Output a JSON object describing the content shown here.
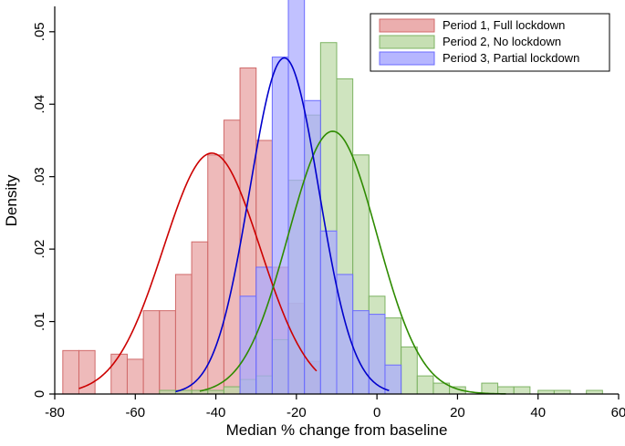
{
  "chart_data": {
    "type": "bar",
    "title": "",
    "xlabel": "Median % change from baseline",
    "ylabel": "Density",
    "xlim": [
      -80,
      60
    ],
    "ylim": [
      0,
      0.0535
    ],
    "x_ticks": [
      -80,
      -60,
      -40,
      -20,
      0,
      20,
      40,
      60
    ],
    "x_tick_labels": [
      "-80",
      "-60",
      "-40",
      "-20",
      "0",
      "20",
      "40",
      "60"
    ],
    "y_ticks": [
      0,
      0.01,
      0.02,
      0.03,
      0.04,
      0.05
    ],
    "y_tick_labels": [
      "0",
      ".01",
      ".02",
      ".03",
      ".04",
      ".05"
    ],
    "grid": false,
    "legend_position": "top-right",
    "series": [
      {
        "name": "Period 1, Full lockdown",
        "fill": "#e8a0a0",
        "stroke": "#d06a6a",
        "curve_color": "#cc0000",
        "bins": [
          [
            -78,
            -74,
            0.006
          ],
          [
            -74,
            -70,
            0.006
          ],
          [
            -66,
            -62,
            0.0055
          ],
          [
            -62,
            -58,
            0.0048
          ],
          [
            -58,
            -54,
            0.0115
          ],
          [
            -54,
            -50,
            0.0115
          ],
          [
            -50,
            -46,
            0.0165
          ],
          [
            -46,
            -42,
            0.021
          ],
          [
            -42,
            -38,
            0.033
          ],
          [
            -38,
            -34,
            0.0378
          ],
          [
            -34,
            -30,
            0.045
          ],
          [
            -30,
            -26,
            0.035
          ],
          [
            -26,
            -22,
            0.0175
          ],
          [
            -22,
            -18,
            0.0125
          ],
          [
            -18,
            -14,
            0.0045
          ]
        ],
        "normal_curve": {
          "mean": -41,
          "sd": 12,
          "x_range": [
            -74,
            -15
          ]
        }
      },
      {
        "name": "Period 2, No lockdown",
        "fill": "#bcd9a6",
        "stroke": "#7db363",
        "curve_color": "#2e8b00",
        "bins": [
          [
            -54,
            -50,
            0.0005
          ],
          [
            -50,
            -46,
            0.0005
          ],
          [
            -46,
            -42,
            0.0005
          ],
          [
            -42,
            -38,
            0.0005
          ],
          [
            -38,
            -34,
            0.001
          ],
          [
            -34,
            -30,
            0.002
          ],
          [
            -30,
            -26,
            0.0025
          ],
          [
            -26,
            -22,
            0.0075
          ],
          [
            -22,
            -18,
            0.0295
          ],
          [
            -18,
            -14,
            0.0385
          ],
          [
            -14,
            -10,
            0.0485
          ],
          [
            -10,
            -6,
            0.0435
          ],
          [
            -6,
            -2,
            0.033
          ],
          [
            -2,
            2,
            0.0135
          ],
          [
            2,
            6,
            0.0105
          ],
          [
            6,
            10,
            0.0065
          ],
          [
            10,
            14,
            0.0025
          ],
          [
            14,
            18,
            0.0015
          ],
          [
            18,
            22,
            0.001
          ],
          [
            26,
            30,
            0.0015
          ],
          [
            30,
            34,
            0.001
          ],
          [
            34,
            38,
            0.001
          ],
          [
            40,
            44,
            0.0005
          ],
          [
            44,
            48,
            0.0005
          ],
          [
            52,
            56,
            0.0005
          ]
        ],
        "normal_curve": {
          "mean": -11,
          "sd": 11,
          "x_range": [
            -44,
            32
          ]
        }
      },
      {
        "name": "Period 3, Partial lockdown",
        "fill": "#a9a9ff",
        "stroke": "#6b6bff",
        "curve_color": "#0000cc",
        "bins": [
          [
            -34,
            -30,
            0.0135
          ],
          [
            -30,
            -26,
            0.0175
          ],
          [
            -26,
            -22,
            0.0465
          ],
          [
            -22,
            -18,
            0.055
          ],
          [
            -18,
            -14,
            0.0405
          ],
          [
            -14,
            -10,
            0.0225
          ],
          [
            -10,
            -6,
            0.0165
          ],
          [
            -6,
            -2,
            0.0115
          ],
          [
            -2,
            2,
            0.011
          ],
          [
            2,
            6,
            0.004
          ]
        ],
        "normal_curve": {
          "mean": -23,
          "sd": 8.6,
          "x_range": [
            -50,
            3
          ]
        }
      }
    ]
  }
}
